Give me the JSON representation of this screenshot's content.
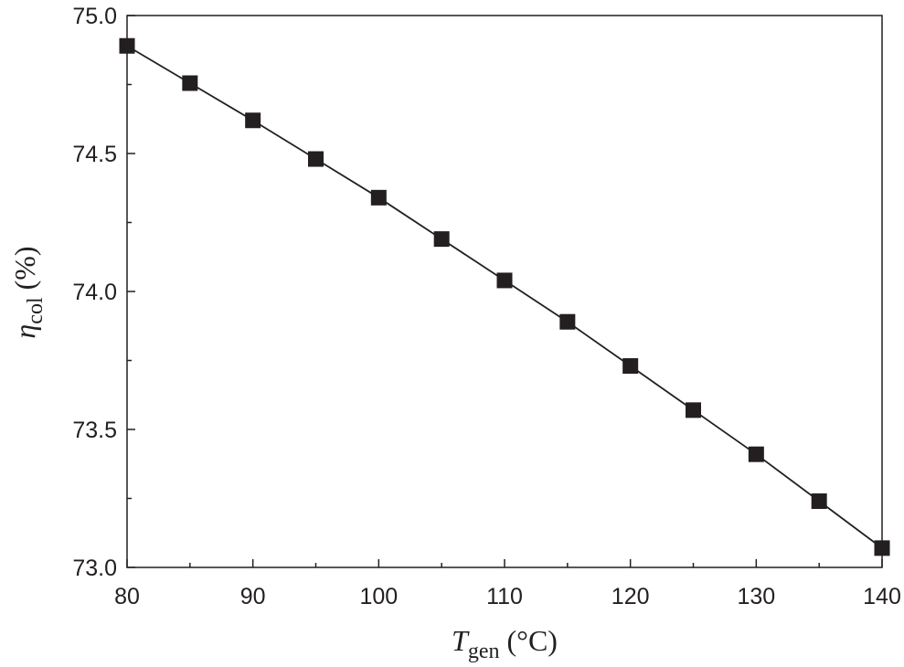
{
  "chart_data": {
    "type": "line",
    "x": [
      80,
      85,
      90,
      95,
      100,
      105,
      110,
      115,
      120,
      125,
      130,
      135,
      140
    ],
    "series": [
      {
        "values": [
          74.89,
          74.755,
          74.62,
          74.48,
          74.34,
          74.19,
          74.04,
          73.89,
          73.73,
          73.57,
          73.41,
          73.24,
          73.07
        ],
        "marker": "square",
        "color": "#231f20"
      }
    ],
    "xlim": [
      80,
      140
    ],
    "ylim": [
      73.0,
      75.0
    ],
    "x_ticks": [
      "80",
      "90",
      "100",
      "110",
      "120",
      "130",
      "140"
    ],
    "y_ticks": [
      "73.0",
      "73.5",
      "74.0",
      "74.5",
      "75.0"
    ],
    "x_minor_step": 5,
    "y_minor_step": 0.25,
    "xlabel": {
      "main": "T",
      "sub": "gen",
      "unit": " (°C)"
    },
    "ylabel": {
      "main": "η",
      "sub": "col",
      "unit": " (%)"
    },
    "grid": false,
    "legend": "none"
  }
}
